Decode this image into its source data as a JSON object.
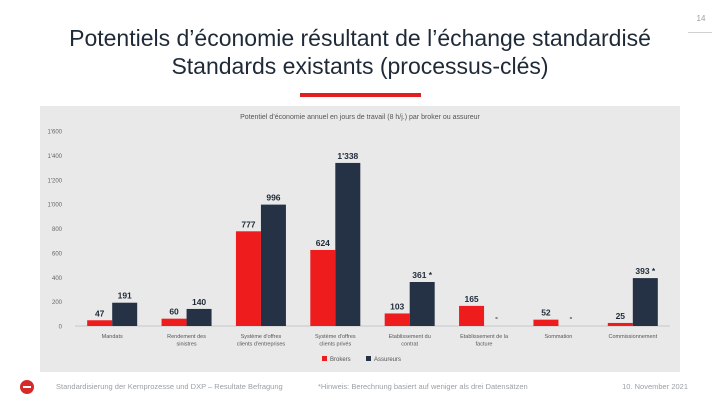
{
  "page_number": "14",
  "title_line1": "Potentiels d’économie résultant de l’échange standardisé",
  "title_line2": "Standards existants (processus-clés)",
  "footer": {
    "left": "Standardisierung der Kernprozesse und DXP – Resultate Befragung",
    "center": "*Hinweis: Berechnung basiert auf weniger als drei Datensätzen",
    "right": "10. November 2021"
  },
  "colors": {
    "brokers": "#ee1c1c",
    "assureurs": "#253246",
    "accent": "#e02020",
    "panel": "#e9e9e9"
  },
  "chart_data": {
    "type": "bar",
    "title": "Potentiel d’économie annuel en jours de travail (8 h/j.) par broker ou assureur",
    "ylim": [
      0,
      1600
    ],
    "yticks": [
      0,
      200,
      400,
      600,
      800,
      1000,
      1200,
      1400,
      1600
    ],
    "ytick_labels": [
      "0",
      "200",
      "400",
      "600",
      "800",
      "1'000",
      "1'200",
      "1'400",
      "1'600"
    ],
    "categories": [
      [
        "Mandats"
      ],
      [
        "Rendement des",
        "sinistres"
      ],
      [
        "Système d'offres",
        "clients d'entreprises"
      ],
      [
        "Système d'offres",
        "clients privés"
      ],
      [
        "Etablissement du",
        "contrat"
      ],
      [
        "Etablissement de la",
        "facture"
      ],
      [
        "Sommation"
      ],
      [
        "Commissionnement"
      ]
    ],
    "series": [
      {
        "name": "Brokers",
        "color": "#ee1c1c",
        "values": [
          47,
          60,
          777,
          624,
          103,
          165,
          52,
          25
        ],
        "labels": [
          "47",
          "60",
          "777",
          "624",
          "103",
          "165",
          "52",
          "25"
        ]
      },
      {
        "name": "Assureurs",
        "color": "#253246",
        "values": [
          191,
          140,
          996,
          1338,
          361,
          null,
          null,
          393
        ],
        "labels": [
          "191",
          "140",
          "996",
          "1'338",
          "361 *",
          "-",
          "-",
          "393 *"
        ]
      }
    ],
    "legend_position": "bottom-center",
    "grid": false
  }
}
